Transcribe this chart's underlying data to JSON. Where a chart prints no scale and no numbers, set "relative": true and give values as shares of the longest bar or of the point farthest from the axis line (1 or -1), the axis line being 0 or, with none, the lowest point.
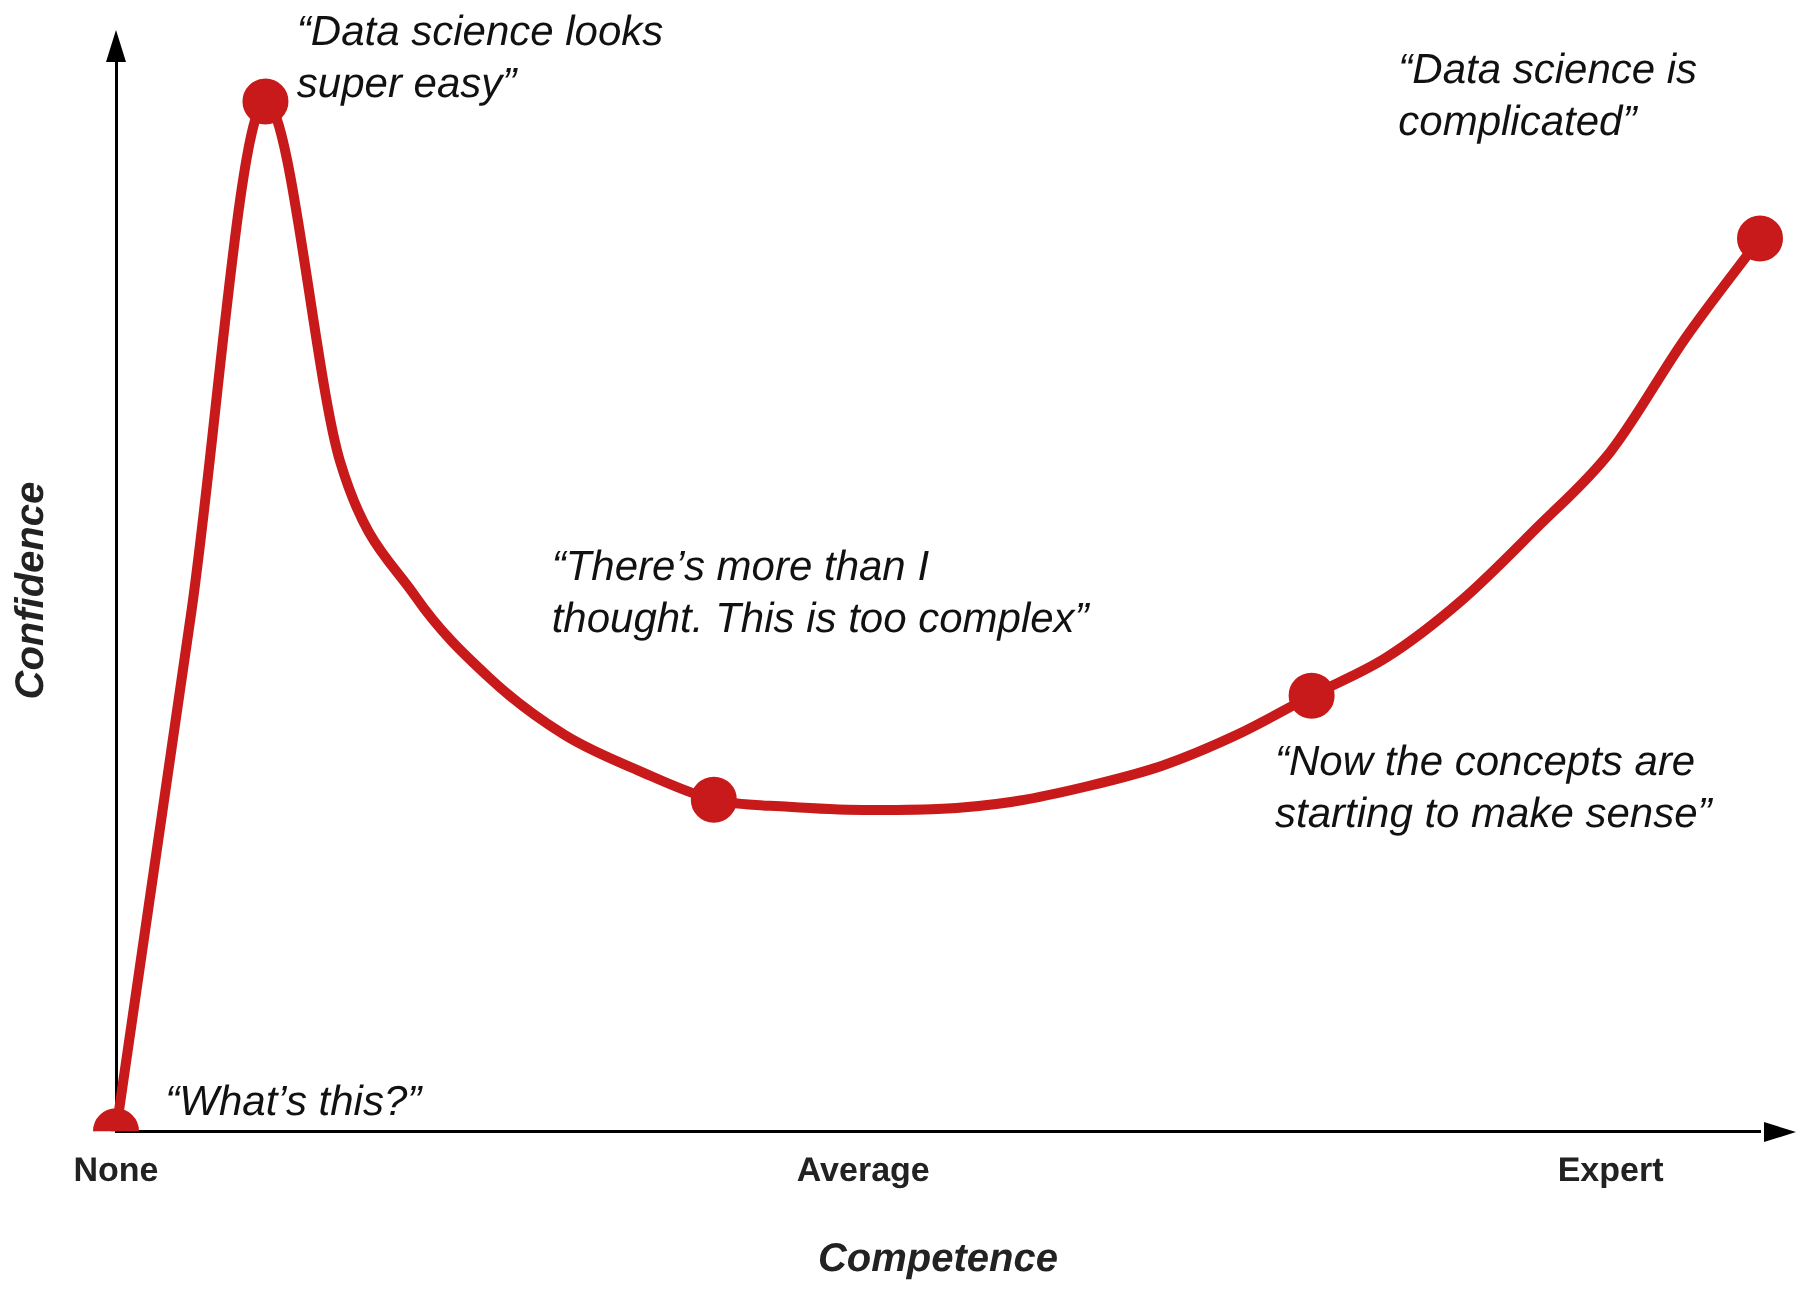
{
  "chart_data": {
    "type": "line",
    "relative": true,
    "xlabel": "Competence",
    "ylabel": "Confidence",
    "categories": [
      "None",
      null,
      null,
      null,
      null,
      null,
      null,
      null,
      null,
      null,
      "Average",
      null,
      null,
      null,
      null,
      null,
      null,
      null,
      null,
      null,
      "Expert",
      null,
      null
    ],
    "grid": false,
    "legend": false,
    "marker": "none",
    "line_style": "solid",
    "series": [
      {
        "color": "#c81a1a",
        "values": [
          0,
          0.5,
          1,
          0.65,
          0.52,
          0.44,
          0.385,
          0.35,
          0.322,
          0.315,
          0.312,
          0.313,
          0.32,
          0.335,
          0.355,
          0.385,
          0.423,
          0.46,
          0.515,
          0.585,
          0.66,
          0.77,
          0.867
        ]
      },
      {
        "type": "scatter",
        "color": "#c81a1a",
        "marker": "circle",
        "values": [
          0,
          null,
          1,
          null,
          null,
          null,
          null,
          null,
          0.322,
          null,
          null,
          null,
          null,
          null,
          null,
          null,
          0.423,
          null,
          null,
          null,
          null,
          null,
          0.867
        ]
      }
    ],
    "annotations": [
      "“What’s this?”",
      "“Data science looks super easy”",
      "“There’s more than I thought. This is too complex”",
      "“Now the concepts are starting to make sense”",
      "“Data science is complicated”"
    ]
  }
}
